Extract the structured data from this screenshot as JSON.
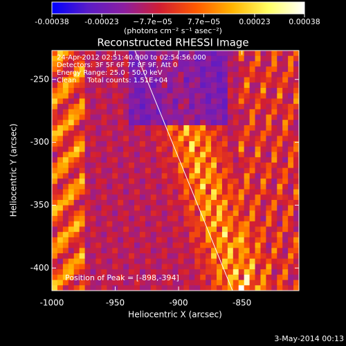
{
  "chart_data": {
    "type": "image",
    "title": "Reconstructed RHESSI Image",
    "colorbar": {
      "lim": [
        -0.00038,
        0.00038
      ],
      "ticks": [
        -0.00038,
        -0.00023,
        {
          "value": -7.7e-05,
          "label": "−7.7e−05"
        },
        {
          "value": 7.7e-05,
          "label": "7.7e−05"
        },
        0.00023,
        0.00038
      ],
      "label": "(photons cm⁻² s⁻¹ asec⁻²)",
      "colormap": [
        "#0000ff",
        "#5a1cc8",
        "#8c1ea0",
        "#d21e32",
        "#ff5a00",
        "#ffb400",
        "#ffff64",
        "#ffffff"
      ]
    },
    "x_label": "Heliocentric X (arcsec)",
    "y_label": "Heliocentric Y (arcsec)",
    "xlim": [
      -1000,
      -805
    ],
    "ylim": [
      -418,
      -227
    ],
    "xticks": [
      -1000,
      -950,
      -900,
      -850
    ],
    "yticks": [
      -250,
      -300,
      -350,
      -400
    ],
    "annotations": [
      "24-Apr-2012 02:51:40.000 to 02:54:56.000",
      "Detectors: 3F 5F 6F 7F 8F 9F, Att 0",
      "Energy Range: 25.0 - 50.0 keV",
      "Clean     Total counts: 1.51E+04"
    ],
    "peak_label": "Position of Peak = [-898,-394]",
    "footer": "3-May-2014 00:13"
  }
}
